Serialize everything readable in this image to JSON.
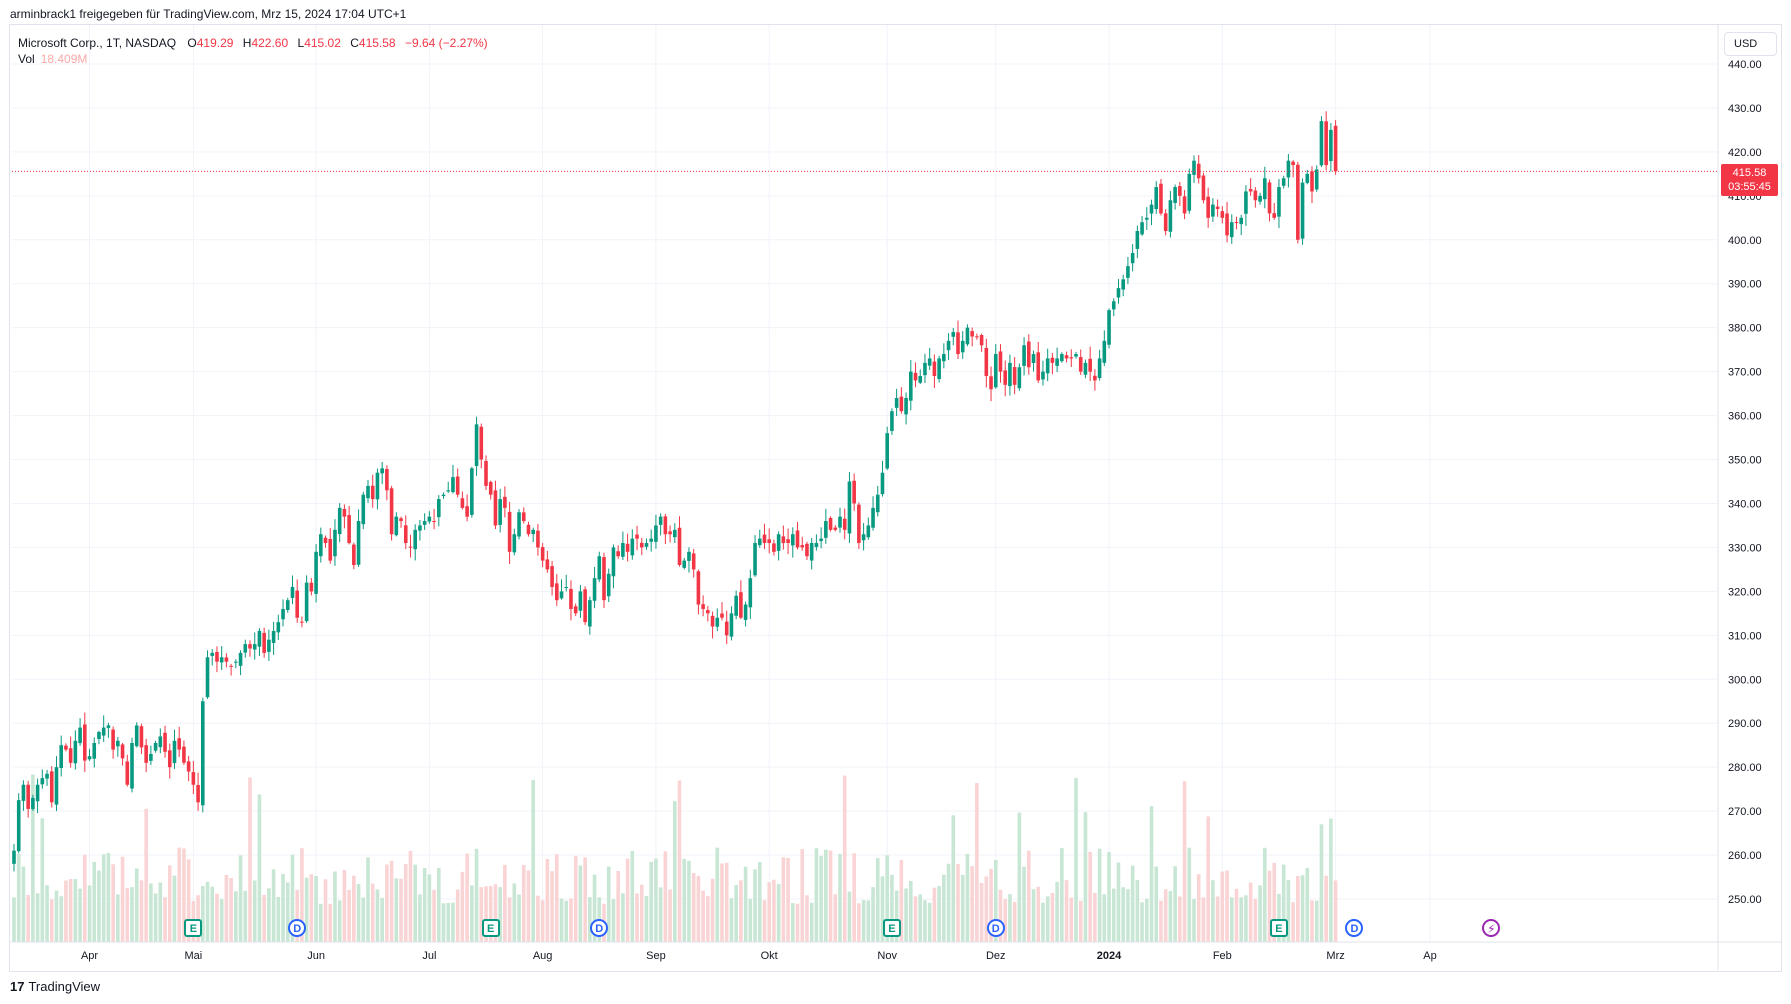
{
  "header": {
    "text": "arminbrack1 freigegeben für TradingView.com, Mrz 15, 2024 17:04 UTC+1"
  },
  "legend": {
    "symbol": "Microsoft Corp., 1T, NASDAQ",
    "o_label": "O",
    "o_value": "419.29",
    "h_label": "H",
    "h_value": "422.60",
    "l_label": "L",
    "l_value": "415.02",
    "c_label": "C",
    "c_value": "415.58",
    "change": "−9.64 (−2.27%)",
    "vol_label": "Vol",
    "vol_value": "18.409M"
  },
  "currency": "USD",
  "last_price": {
    "price": "415.58",
    "countdown": "03:55:45"
  },
  "logo": {
    "text": "TradingView",
    "mark": "17"
  },
  "colors": {
    "up": "#089981",
    "down": "#f23645",
    "vol_up": "#c8e6d4",
    "vol_down": "#fad4d4",
    "grid": "#f0f3fa",
    "axis_text": "#131722"
  },
  "events": [
    {
      "type": "earnings",
      "icon": "E",
      "bar": 38
    },
    {
      "type": "dividend",
      "icon": "D",
      "bar": 60
    },
    {
      "type": "earnings",
      "icon": "E",
      "bar": 101
    },
    {
      "type": "dividend",
      "icon": "D",
      "bar": 124
    },
    {
      "type": "earnings",
      "icon": "E",
      "bar": 186
    },
    {
      "type": "dividend",
      "icon": "D",
      "bar": 208
    },
    {
      "type": "earnings",
      "icon": "E",
      "bar": 268
    },
    {
      "type": "dividend",
      "icon": "D",
      "bar": 284
    },
    {
      "type": "split",
      "icon": "⚡",
      "bar": 313
    }
  ],
  "chart_data": {
    "type": "candlestick",
    "title": "",
    "xlabel": "",
    "ylabel": "",
    "ylim": [
      240,
      445
    ],
    "y_ticks": [
      "250.00",
      "260.00",
      "270.00",
      "280.00",
      "290.00",
      "300.00",
      "310.00",
      "320.00",
      "330.00",
      "340.00",
      "350.00",
      "360.00",
      "370.00",
      "380.00",
      "390.00",
      "400.00",
      "410.00",
      "420.00",
      "430.00",
      "440.00"
    ],
    "x_ticks": [
      {
        "label": "Apr",
        "bar": 16
      },
      {
        "label": "Mai",
        "bar": 38
      },
      {
        "label": "Jun",
        "bar": 64
      },
      {
        "label": "Jul",
        "bar": 88
      },
      {
        "label": "Aug",
        "bar": 112
      },
      {
        "label": "Sep",
        "bar": 136
      },
      {
        "label": "Okt",
        "bar": 160
      },
      {
        "label": "Nov",
        "bar": 185
      },
      {
        "label": "Dez",
        "bar": 208
      },
      {
        "label": "2024",
        "bar": 232
      },
      {
        "label": "Feb",
        "bar": 256
      },
      {
        "label": "Mrz",
        "bar": 280
      },
      {
        "label": "Ap",
        "bar": 300
      }
    ],
    "last_price": 415.58,
    "closes": [
      261,
      272.5,
      276,
      270.5,
      273,
      276,
      277.5,
      278.5,
      272,
      280,
      285,
      284,
      281,
      286,
      289,
      281.5,
      282.5,
      285.5,
      288,
      289,
      289.5,
      284,
      286,
      282,
      276,
      285.5,
      289.5,
      284.5,
      281,
      283,
      285.5,
      287,
      283.5,
      280,
      286,
      284,
      281,
      279,
      276,
      272,
      295,
      305,
      306,
      304,
      305,
      304,
      303,
      304,
      306,
      308,
      307,
      308,
      311,
      306,
      309,
      311,
      313,
      316,
      318,
      321,
      314,
      313,
      322,
      320,
      329,
      333,
      331,
      327,
      334,
      339,
      337,
      331,
      326,
      336,
      342,
      344,
      341,
      347,
      348,
      343,
      333,
      337,
      336,
      331,
      330,
      334,
      335,
      336,
      337,
      336,
      341,
      342,
      343,
      346,
      342,
      339,
      337,
      348,
      358,
      350,
      344,
      342,
      335,
      341,
      339,
      329,
      333,
      338,
      336,
      333,
      334,
      330,
      327,
      325,
      321,
      318,
      320,
      321,
      316,
      315,
      320,
      313,
      318,
      323,
      328,
      318,
      324,
      330,
      328,
      331,
      329,
      332,
      332,
      330,
      331,
      332,
      335,
      337,
      333,
      333,
      334,
      326,
      327,
      329,
      325,
      317,
      316,
      315,
      312,
      314,
      314,
      310,
      315,
      319,
      314,
      317,
      323,
      331,
      332,
      331,
      331,
      329,
      333,
      331,
      331,
      333,
      330,
      330,
      328,
      331,
      331,
      332,
      336,
      334,
      334,
      337,
      334,
      345,
      340,
      331,
      333,
      335,
      339,
      342,
      347,
      356,
      361,
      364,
      361,
      364,
      370,
      368,
      369,
      372,
      373,
      369,
      373,
      374,
      377,
      379,
      374,
      377,
      380,
      378,
      378,
      376,
      369,
      366,
      374,
      370,
      367,
      372,
      367,
      371,
      376,
      371,
      374,
      368,
      370,
      373,
      372,
      373,
      374,
      373,
      373,
      374,
      370,
      372,
      370,
      368,
      373,
      377,
      384,
      386,
      389,
      391,
      394,
      397,
      402,
      404,
      405,
      408,
      412,
      406,
      402,
      409,
      412,
      410,
      406,
      415,
      418,
      414,
      409,
      405,
      408,
      407,
      405,
      401,
      404,
      404,
      405,
      411,
      411,
      409,
      410,
      414,
      406,
      405,
      412,
      414,
      418,
      417,
      400,
      413,
      415,
      411,
      416,
      427,
      417,
      425,
      415.58
    ],
    "note_volume_scale": "volume in millions"
  }
}
